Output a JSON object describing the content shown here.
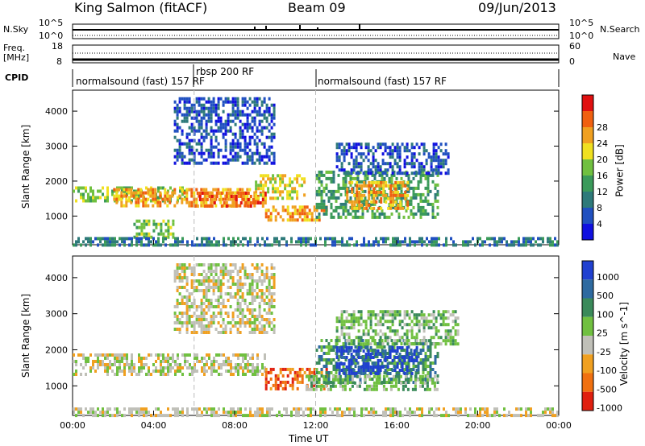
{
  "header": {
    "station": "King Salmon (fitACF)",
    "beam": "Beam 09",
    "date": "09/Jun/2013"
  },
  "aux_panels": {
    "nsky_label": "N.Sky",
    "nsky_ticks": [
      "10^5",
      "10^0"
    ],
    "nsearch_label": "N.Search",
    "nsearch_ticks": [
      "10^5",
      "10^0"
    ],
    "freq_label": "Freq.",
    "freq_unit": "[MHz]",
    "freq_ticks": [
      "18",
      "8"
    ],
    "nave_label": "Nave",
    "nave_ticks": [
      "60",
      "0"
    ],
    "cpid_label": "CPID"
  },
  "cpid_segments": [
    {
      "label": "normalsound (fast) 157 RF",
      "start_hour": 0
    },
    {
      "label": "rbsp 200 RF",
      "start_hour": 6
    },
    {
      "label": "normalsound (fast) 157 RF",
      "start_hour": 12
    }
  ],
  "chart_data": [
    {
      "type": "heatmap",
      "panel": "power",
      "ylabel": "Slant Range [km]",
      "yticks": [
        "1000",
        "2000",
        "3000",
        "4000"
      ],
      "ylim": [
        180,
        4600
      ],
      "xlim": [
        0,
        24
      ],
      "colorbar_label": "Power [dB]",
      "colorbar_ticks": [
        "4",
        "8",
        "12",
        "16",
        "20",
        "24",
        "28"
      ],
      "colorbar_colors": [
        "#1010e0",
        "#2050c0",
        "#2e7a7a",
        "#3a9a5a",
        "#70c040",
        "#f0e020",
        "#f0a020",
        "#f06010",
        "#e01010"
      ],
      "bands": [
        {
          "x": [
            0.0,
            5.5
          ],
          "y": [
            1400,
            1850
          ],
          "level": 4
        },
        {
          "x": [
            2.0,
            9.0
          ],
          "y": [
            1300,
            1800
          ],
          "level": 6
        },
        {
          "x": [
            6.0,
            9.5
          ],
          "y": [
            1300,
            1700
          ],
          "level": 7
        },
        {
          "x": [
            9.0,
            11.5
          ],
          "y": [
            1500,
            2200
          ],
          "level": 5
        },
        {
          "x": [
            9.5,
            12.5
          ],
          "y": [
            900,
            1300
          ],
          "level": 6
        },
        {
          "x": [
            12.0,
            18.0
          ],
          "y": [
            1000,
            2300
          ],
          "level": 3
        },
        {
          "x": [
            13.5,
            16.5
          ],
          "y": [
            1200,
            2000
          ],
          "level": 6
        },
        {
          "x": [
            3.0,
            5.0
          ],
          "y": [
            400,
            900
          ],
          "level": 4
        },
        {
          "x": [
            5.0,
            10.0
          ],
          "y": [
            2500,
            4400
          ],
          "level": 1
        },
        {
          "x": [
            13.0,
            18.5
          ],
          "y": [
            2200,
            3100
          ],
          "level": 1
        },
        {
          "x": [
            0.0,
            24.0
          ],
          "y": [
            180,
            400
          ],
          "level": 2
        }
      ]
    },
    {
      "type": "heatmap",
      "panel": "velocity",
      "ylabel": "Slant Range [km]",
      "yticks": [
        "1000",
        "2000",
        "3000",
        "4000"
      ],
      "ylim": [
        180,
        4600
      ],
      "xlim": [
        0,
        24
      ],
      "xticks": [
        "00:00",
        "04:00",
        "08:00",
        "12:00",
        "16:00",
        "20:00",
        "00:00"
      ],
      "xlabel": "Time UT",
      "colorbar_label": "Velocity [m s^-1]",
      "colorbar_ticks": [
        "1000",
        "500",
        "100",
        "25",
        "-25",
        "-100",
        "-500",
        "-1000"
      ],
      "colorbar_colors": [
        "#2040d0",
        "#2e6aa0",
        "#3a8a5a",
        "#70c040",
        "#c0c0b8",
        "#f0a020",
        "#f07010",
        "#e02010"
      ],
      "bands": [
        {
          "x": [
            0.0,
            9.5
          ],
          "y": [
            1300,
            1900
          ],
          "level": 4
        },
        {
          "x": [
            9.5,
            12.5
          ],
          "y": [
            900,
            1500
          ],
          "level": 6
        },
        {
          "x": [
            12.0,
            18.0
          ],
          "y": [
            1100,
            2300
          ],
          "level": 2
        },
        {
          "x": [
            13.0,
            17.0
          ],
          "y": [
            1300,
            2100
          ],
          "level": 0
        },
        {
          "x": [
            11.5,
            18.0
          ],
          "y": [
            900,
            1300
          ],
          "level": 3
        },
        {
          "x": [
            5.0,
            10.0
          ],
          "y": [
            2500,
            4400
          ],
          "level": 4
        },
        {
          "x": [
            13.0,
            19.0
          ],
          "y": [
            2200,
            3100
          ],
          "level": 3
        },
        {
          "x": [
            0.0,
            24.0
          ],
          "y": [
            180,
            400
          ],
          "level": 4
        }
      ]
    }
  ]
}
